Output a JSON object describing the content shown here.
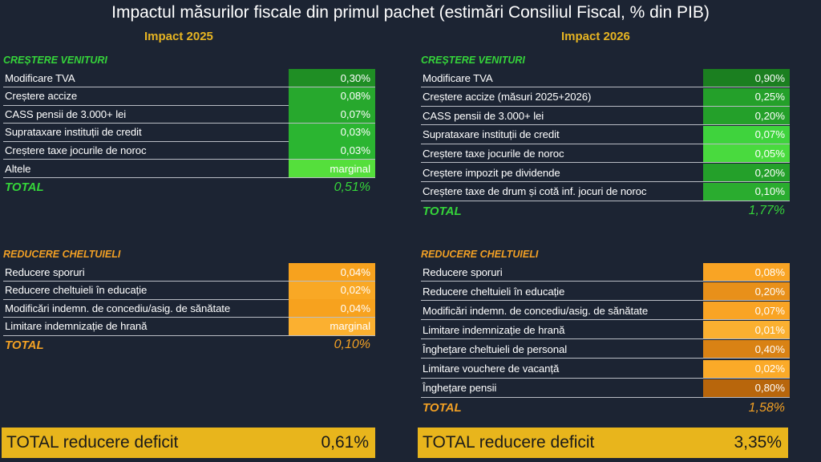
{
  "title": "Impactul măsurilor fiscale din primul pachet (estimări Consiliul Fiscal, % din PIB)",
  "left": {
    "impact_label": "Impact 2025",
    "revenue": {
      "header": "CREȘTERE VENITURI",
      "rows": [
        {
          "label": "Modificare TVA",
          "value": "0,30%",
          "color": "#1f8e24"
        },
        {
          "label": "Creștere accize",
          "value": "0,08%",
          "color": "#27a82d"
        },
        {
          "label": "CASS pensii de 3.000+ lei",
          "value": "0,07%",
          "color": "#27a82d"
        },
        {
          "label": "Suprataxare instituții de credit",
          "value": "0,03%",
          "color": "#2bb531"
        },
        {
          "label": "Creștere taxe jocurile de noroc",
          "value": "0,03%",
          "color": "#2bb531"
        },
        {
          "label": "Altele",
          "value": "marginal",
          "color": "#55df3c"
        }
      ],
      "total_label": "TOTAL",
      "total_value": "0,51%"
    },
    "spending": {
      "header": "REDUCERE CHELTUIELI",
      "rows": [
        {
          "label": "Reducere sporuri",
          "value": "0,04%",
          "color": "#f7a21e"
        },
        {
          "label": "Reducere cheltuieli în educație",
          "value": "0,02%",
          "color": "#f9a825"
        },
        {
          "label": "Modificări indemn. de concediu/asig. de sănătate",
          "value": "0,04%",
          "color": "#f7a21e"
        },
        {
          "label": "Limitare indemnizație de hrană",
          "value": "marginal",
          "color": "#fbb030"
        }
      ],
      "total_label": "TOTAL",
      "total_value": "0,10%"
    },
    "grand_label": "TOTAL reducere deficit",
    "grand_value": "0,61%"
  },
  "right": {
    "impact_label": "Impact 2026",
    "revenue": {
      "header": "CREȘTERE VENITURI",
      "rows": [
        {
          "label": "Modificare TVA",
          "value": "0,90%",
          "color": "#1b7f20"
        },
        {
          "label": "Creștere accize (măsuri 2025+2026)",
          "value": "0,25%",
          "color": "#24a02a"
        },
        {
          "label": "CASS pensii de 3.000+ lei",
          "value": "0,20%",
          "color": "#24a02a"
        },
        {
          "label": "Suprataxare instituții de credit",
          "value": "0,07%",
          "color": "#3fd33d"
        },
        {
          "label": "Creștere taxe jocurile de noroc",
          "value": "0,05%",
          "color": "#49da3e"
        },
        {
          "label": "Creștere impozit pe dividende",
          "value": "0,20%",
          "color": "#24a02a"
        },
        {
          "label": "Creștere taxe de drum și cotă inf. jocuri de noroc",
          "value": "0,10%",
          "color": "#2aac2f"
        }
      ],
      "total_label": "TOTAL",
      "total_value": "1,77%"
    },
    "spending": {
      "header": "REDUCERE CHELTUIELI",
      "rows": [
        {
          "label": "Reducere sporuri",
          "value": "0,08%",
          "color": "#f9a424"
        },
        {
          "label": "Reducere cheltuieli în educație",
          "value": "0,20%",
          "color": "#e8901a"
        },
        {
          "label": "Modificări indemn. de concediu/asig. de sănătate",
          "value": "0,07%",
          "color": "#f9a424"
        },
        {
          "label": "Limitare indemnizație de hrană",
          "value": "0,01%",
          "color": "#fbb030"
        },
        {
          "label": "Înghețare cheltuieli de personal",
          "value": "0,40%",
          "color": "#d98214"
        },
        {
          "label": "Limitare vouchere de vacanță",
          "value": "0,02%",
          "color": "#fbaa28"
        },
        {
          "label": "Înghețare pensii",
          "value": "0,80%",
          "color": "#b8660c"
        }
      ],
      "total_label": "TOTAL",
      "total_value": "1,58%"
    },
    "grand_label": "TOTAL reducere deficit",
    "grand_value": "3,35%"
  }
}
